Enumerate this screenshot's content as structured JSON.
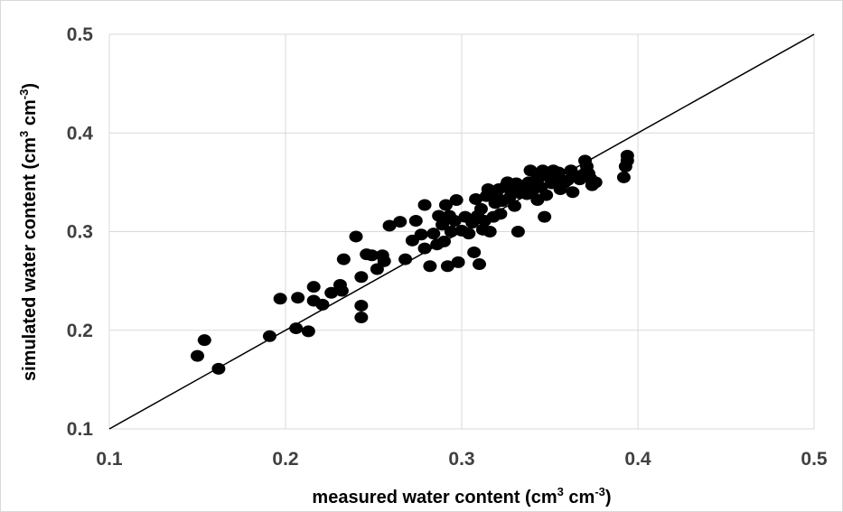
{
  "chart_data": {
    "type": "scatter",
    "xlabel": {
      "prefix": "measured water content  (cm",
      "sup1": "3",
      "mid": " cm",
      "sup2": "-3",
      "suffix": ")"
    },
    "ylabel": {
      "prefix": "simulated water content (cm",
      "sup1": "3",
      "mid": " cm",
      "sup2": "-3",
      "suffix": ")"
    },
    "xlim": [
      0.1,
      0.5
    ],
    "ylim": [
      0.1,
      0.5
    ],
    "x_ticks": [
      "0.1",
      "0.2",
      "0.3",
      "0.4",
      "0.5"
    ],
    "y_ticks": [
      "0.1",
      "0.2",
      "0.3",
      "0.4",
      "0.5"
    ],
    "grid": true,
    "reference_line": {
      "type": "1:1",
      "from": [
        0.1,
        0.1
      ],
      "to": [
        0.5,
        0.5
      ]
    },
    "colors": {
      "points": "#000000",
      "grid": "#d9d9d9",
      "line": "#000000",
      "ticks": "#404040"
    },
    "points": [
      [
        0.15,
        0.174
      ],
      [
        0.154,
        0.19
      ],
      [
        0.162,
        0.161
      ],
      [
        0.191,
        0.194
      ],
      [
        0.197,
        0.232
      ],
      [
        0.207,
        0.233
      ],
      [
        0.206,
        0.202
      ],
      [
        0.213,
        0.199
      ],
      [
        0.216,
        0.23
      ],
      [
        0.216,
        0.244
      ],
      [
        0.221,
        0.226
      ],
      [
        0.226,
        0.238
      ],
      [
        0.231,
        0.246
      ],
      [
        0.232,
        0.24
      ],
      [
        0.233,
        0.272
      ],
      [
        0.24,
        0.295
      ],
      [
        0.243,
        0.213
      ],
      [
        0.243,
        0.225
      ],
      [
        0.243,
        0.254
      ],
      [
        0.246,
        0.277
      ],
      [
        0.249,
        0.276
      ],
      [
        0.252,
        0.262
      ],
      [
        0.255,
        0.276
      ],
      [
        0.256,
        0.27
      ],
      [
        0.259,
        0.306
      ],
      [
        0.265,
        0.31
      ],
      [
        0.268,
        0.272
      ],
      [
        0.272,
        0.291
      ],
      [
        0.274,
        0.311
      ],
      [
        0.277,
        0.297
      ],
      [
        0.279,
        0.283
      ],
      [
        0.279,
        0.327
      ],
      [
        0.282,
        0.265
      ],
      [
        0.284,
        0.298
      ],
      [
        0.286,
        0.287
      ],
      [
        0.287,
        0.316
      ],
      [
        0.289,
        0.307
      ],
      [
        0.29,
        0.29
      ],
      [
        0.291,
        0.327
      ],
      [
        0.292,
        0.265
      ],
      [
        0.293,
        0.316
      ],
      [
        0.294,
        0.3
      ],
      [
        0.296,
        0.311
      ],
      [
        0.297,
        0.332
      ],
      [
        0.298,
        0.269
      ],
      [
        0.3,
        0.301
      ],
      [
        0.302,
        0.315
      ],
      [
        0.304,
        0.298
      ],
      [
        0.306,
        0.309
      ],
      [
        0.307,
        0.279
      ],
      [
        0.308,
        0.333
      ],
      [
        0.309,
        0.316
      ],
      [
        0.31,
        0.267
      ],
      [
        0.311,
        0.323
      ],
      [
        0.312,
        0.302
      ],
      [
        0.313,
        0.311
      ],
      [
        0.314,
        0.336
      ],
      [
        0.315,
        0.343
      ],
      [
        0.316,
        0.3
      ],
      [
        0.318,
        0.315
      ],
      [
        0.319,
        0.329
      ],
      [
        0.32,
        0.335
      ],
      [
        0.321,
        0.343
      ],
      [
        0.322,
        0.318
      ],
      [
        0.323,
        0.331
      ],
      [
        0.325,
        0.346
      ],
      [
        0.326,
        0.35
      ],
      [
        0.327,
        0.334
      ],
      [
        0.328,
        0.341
      ],
      [
        0.33,
        0.326
      ],
      [
        0.331,
        0.349
      ],
      [
        0.332,
        0.3
      ],
      [
        0.333,
        0.339
      ],
      [
        0.334,
        0.346
      ],
      [
        0.336,
        0.344
      ],
      [
        0.337,
        0.338
      ],
      [
        0.338,
        0.35
      ],
      [
        0.339,
        0.362
      ],
      [
        0.34,
        0.34
      ],
      [
        0.341,
        0.345
      ],
      [
        0.342,
        0.352
      ],
      [
        0.343,
        0.332
      ],
      [
        0.344,
        0.355
      ],
      [
        0.345,
        0.345
      ],
      [
        0.346,
        0.362
      ],
      [
        0.347,
        0.315
      ],
      [
        0.348,
        0.337
      ],
      [
        0.35,
        0.355
      ],
      [
        0.351,
        0.349
      ],
      [
        0.352,
        0.362
      ],
      [
        0.353,
        0.357
      ],
      [
        0.355,
        0.36
      ],
      [
        0.356,
        0.343
      ],
      [
        0.358,
        0.349
      ],
      [
        0.36,
        0.352
      ],
      [
        0.362,
        0.362
      ],
      [
        0.363,
        0.34
      ],
      [
        0.365,
        0.356
      ],
      [
        0.367,
        0.353
      ],
      [
        0.369,
        0.358
      ],
      [
        0.37,
        0.372
      ],
      [
        0.371,
        0.366
      ],
      [
        0.372,
        0.359
      ],
      [
        0.373,
        0.354
      ],
      [
        0.374,
        0.347
      ],
      [
        0.376,
        0.35
      ],
      [
        0.392,
        0.355
      ],
      [
        0.393,
        0.366
      ],
      [
        0.394,
        0.372
      ],
      [
        0.394,
        0.377
      ]
    ]
  }
}
